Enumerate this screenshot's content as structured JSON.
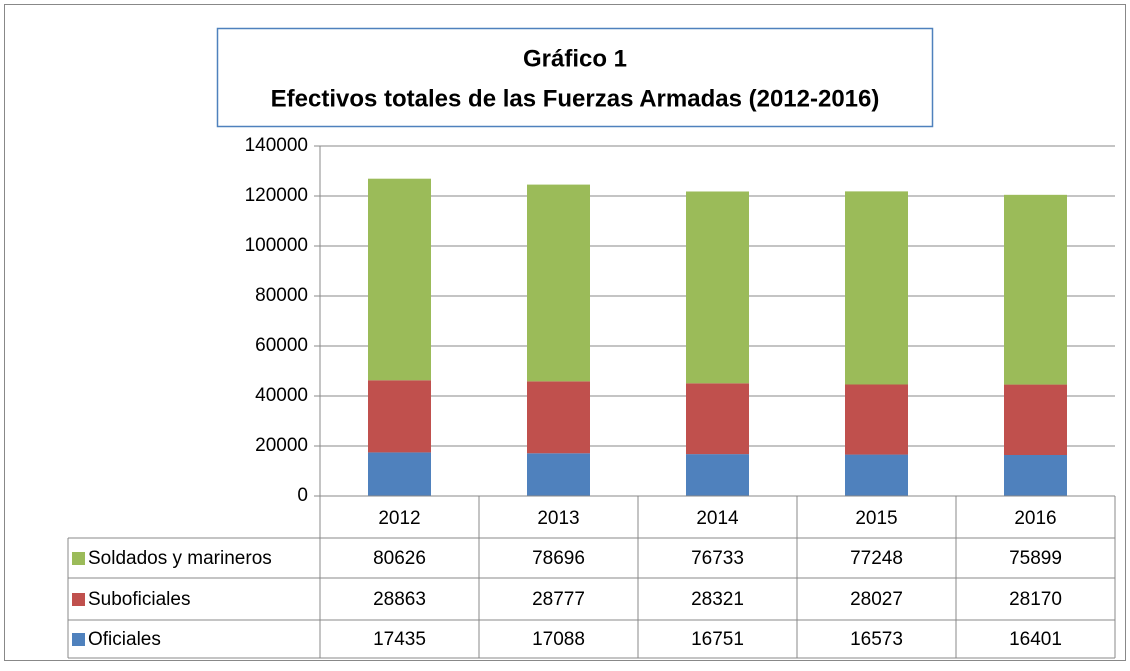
{
  "chart_data": {
    "type": "stacked_bar",
    "title": "Gráfico 1",
    "subtitle": "Efectivos totales de las Fuerzas Armadas (2012-2016)",
    "categories": [
      "2012",
      "2013",
      "2014",
      "2015",
      "2016"
    ],
    "series": [
      {
        "name": "Oficiales",
        "color": "#4f81bd",
        "values": [
          17435,
          17088,
          16751,
          16573,
          16401
        ]
      },
      {
        "name": "Suboficiales",
        "color": "#c0504d",
        "values": [
          28863,
          28777,
          28321,
          28027,
          28170
        ]
      },
      {
        "name": "Soldados y marineros",
        "color": "#9bbb59",
        "values": [
          80626,
          78696,
          76733,
          77248,
          75899
        ]
      }
    ],
    "ylim": [
      0,
      140000
    ],
    "yticks": [
      0,
      20000,
      40000,
      60000,
      80000,
      100000,
      120000,
      140000
    ],
    "grid": true,
    "legend": "table"
  }
}
